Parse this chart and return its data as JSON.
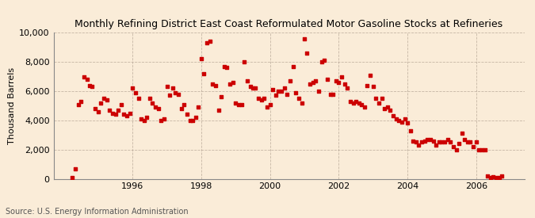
{
  "title": "Monthly Refining District East Coast Reformulated Motor Gasoline Stocks at Refineries",
  "ylabel": "Thousand Barrels",
  "source": "Source: U.S. Energy Information Administration",
  "bg_color": "#faecd8",
  "marker_color": "#cc0000",
  "ylim": [
    0,
    10000
  ],
  "yticks": [
    0,
    2000,
    4000,
    6000,
    8000,
    10000
  ],
  "xlim_start": 1993.7,
  "xlim_end": 2007.4,
  "xtick_years": [
    1996,
    1998,
    2000,
    2002,
    2004,
    2006
  ],
  "data": [
    [
      1994.25,
      100
    ],
    [
      1994.33,
      700
    ],
    [
      1994.42,
      5100
    ],
    [
      1994.5,
      5300
    ],
    [
      1994.58,
      7000
    ],
    [
      1994.67,
      6800
    ],
    [
      1994.75,
      6400
    ],
    [
      1994.83,
      6300
    ],
    [
      1994.92,
      4800
    ],
    [
      1995.0,
      4600
    ],
    [
      1995.08,
      5200
    ],
    [
      1995.17,
      5500
    ],
    [
      1995.25,
      5400
    ],
    [
      1995.33,
      4700
    ],
    [
      1995.42,
      4500
    ],
    [
      1995.5,
      4400
    ],
    [
      1995.58,
      4700
    ],
    [
      1995.67,
      5100
    ],
    [
      1995.75,
      4400
    ],
    [
      1995.83,
      4300
    ],
    [
      1995.92,
      4500
    ],
    [
      1996.0,
      6200
    ],
    [
      1996.08,
      5900
    ],
    [
      1996.17,
      5500
    ],
    [
      1996.25,
      4100
    ],
    [
      1996.33,
      4000
    ],
    [
      1996.42,
      4200
    ],
    [
      1996.5,
      5500
    ],
    [
      1996.58,
      5200
    ],
    [
      1996.67,
      4900
    ],
    [
      1996.75,
      4800
    ],
    [
      1996.83,
      4000
    ],
    [
      1996.92,
      4100
    ],
    [
      1997.0,
      6300
    ],
    [
      1997.08,
      5700
    ],
    [
      1997.17,
      6200
    ],
    [
      1997.25,
      5900
    ],
    [
      1997.33,
      5800
    ],
    [
      1997.42,
      4800
    ],
    [
      1997.5,
      5100
    ],
    [
      1997.58,
      4400
    ],
    [
      1997.67,
      4000
    ],
    [
      1997.75,
      4000
    ],
    [
      1997.83,
      4200
    ],
    [
      1997.92,
      4900
    ],
    [
      1998.0,
      8200
    ],
    [
      1998.08,
      7200
    ],
    [
      1998.17,
      9300
    ],
    [
      1998.25,
      9400
    ],
    [
      1998.33,
      6500
    ],
    [
      1998.42,
      6400
    ],
    [
      1998.5,
      4700
    ],
    [
      1998.58,
      5600
    ],
    [
      1998.67,
      7700
    ],
    [
      1998.75,
      7600
    ],
    [
      1998.83,
      6500
    ],
    [
      1998.92,
      6600
    ],
    [
      1999.0,
      5200
    ],
    [
      1999.08,
      5100
    ],
    [
      1999.17,
      5100
    ],
    [
      1999.25,
      8000
    ],
    [
      1999.33,
      6700
    ],
    [
      1999.42,
      6300
    ],
    [
      1999.5,
      6200
    ],
    [
      1999.58,
      6200
    ],
    [
      1999.67,
      5500
    ],
    [
      1999.75,
      5400
    ],
    [
      1999.83,
      5500
    ],
    [
      1999.92,
      4900
    ],
    [
      2000.0,
      5100
    ],
    [
      2000.08,
      6100
    ],
    [
      2000.17,
      5700
    ],
    [
      2000.25,
      6000
    ],
    [
      2000.33,
      6000
    ],
    [
      2000.42,
      6200
    ],
    [
      2000.5,
      5800
    ],
    [
      2000.58,
      6700
    ],
    [
      2000.67,
      7700
    ],
    [
      2000.75,
      5900
    ],
    [
      2000.83,
      5500
    ],
    [
      2000.92,
      5200
    ],
    [
      2001.0,
      9600
    ],
    [
      2001.08,
      8600
    ],
    [
      2001.17,
      6500
    ],
    [
      2001.25,
      6600
    ],
    [
      2001.33,
      6700
    ],
    [
      2001.42,
      6000
    ],
    [
      2001.5,
      8000
    ],
    [
      2001.58,
      8100
    ],
    [
      2001.67,
      6800
    ],
    [
      2001.75,
      5800
    ],
    [
      2001.83,
      5800
    ],
    [
      2001.92,
      6700
    ],
    [
      2002.0,
      6600
    ],
    [
      2002.08,
      7000
    ],
    [
      2002.17,
      6500
    ],
    [
      2002.25,
      6200
    ],
    [
      2002.33,
      5300
    ],
    [
      2002.42,
      5200
    ],
    [
      2002.5,
      5300
    ],
    [
      2002.58,
      5200
    ],
    [
      2002.67,
      5100
    ],
    [
      2002.75,
      4900
    ],
    [
      2002.83,
      6400
    ],
    [
      2002.92,
      7100
    ],
    [
      2003.0,
      6300
    ],
    [
      2003.08,
      5500
    ],
    [
      2003.17,
      5200
    ],
    [
      2003.25,
      5500
    ],
    [
      2003.33,
      4800
    ],
    [
      2003.42,
      4900
    ],
    [
      2003.5,
      4700
    ],
    [
      2003.58,
      4300
    ],
    [
      2003.67,
      4100
    ],
    [
      2003.75,
      4000
    ],
    [
      2003.83,
      3900
    ],
    [
      2003.92,
      4100
    ],
    [
      2004.0,
      3800
    ],
    [
      2004.08,
      3300
    ],
    [
      2004.17,
      2600
    ],
    [
      2004.25,
      2500
    ],
    [
      2004.33,
      2300
    ],
    [
      2004.42,
      2500
    ],
    [
      2004.5,
      2600
    ],
    [
      2004.58,
      2700
    ],
    [
      2004.67,
      2700
    ],
    [
      2004.75,
      2600
    ],
    [
      2004.83,
      2300
    ],
    [
      2004.92,
      2500
    ],
    [
      2005.0,
      2500
    ],
    [
      2005.08,
      2500
    ],
    [
      2005.17,
      2700
    ],
    [
      2005.25,
      2500
    ],
    [
      2005.33,
      2200
    ],
    [
      2005.42,
      2000
    ],
    [
      2005.5,
      2400
    ],
    [
      2005.58,
      3100
    ],
    [
      2005.67,
      2700
    ],
    [
      2005.75,
      2500
    ],
    [
      2005.83,
      2500
    ],
    [
      2005.92,
      2200
    ],
    [
      2006.0,
      2500
    ],
    [
      2006.08,
      2000
    ],
    [
      2006.17,
      2000
    ],
    [
      2006.25,
      2000
    ],
    [
      2006.33,
      200
    ],
    [
      2006.42,
      100
    ],
    [
      2006.5,
      150
    ],
    [
      2006.58,
      100
    ],
    [
      2006.67,
      100
    ],
    [
      2006.75,
      200
    ]
  ]
}
